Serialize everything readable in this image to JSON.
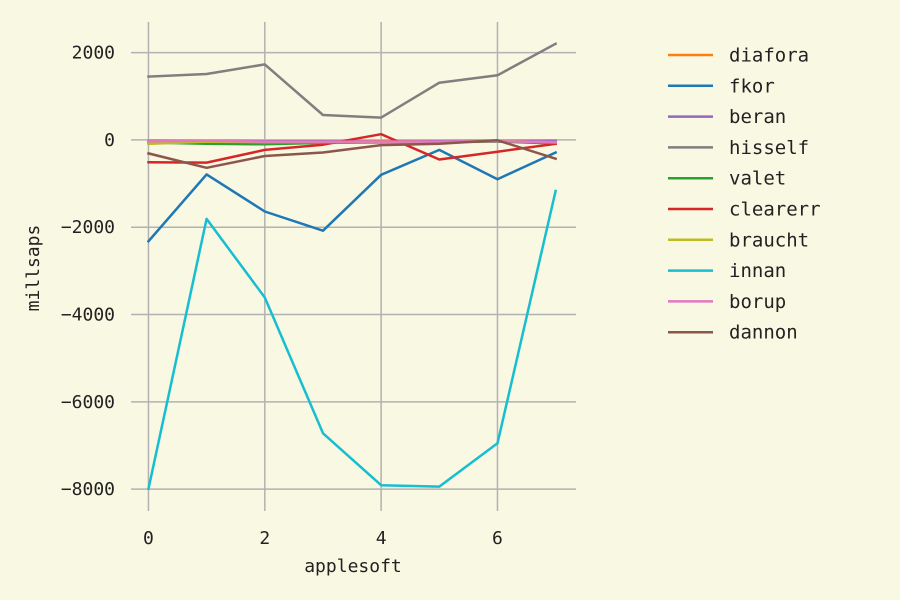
{
  "chart_data": {
    "type": "line",
    "xlabel": "applesoft",
    "ylabel": "millsaps",
    "x": [
      0,
      1,
      2,
      3,
      4,
      5,
      6,
      7
    ],
    "xlim": [
      -0.3,
      7.35
    ],
    "ylim": [
      -8500,
      2700
    ],
    "xticks": [
      0,
      2,
      4,
      6
    ],
    "yticks": [
      2000,
      0,
      -2000,
      -4000,
      -6000,
      -8000
    ],
    "ytick_labels": [
      "2000",
      "0",
      "−2000",
      "−4000",
      "−6000",
      "−8000"
    ],
    "grid": true,
    "legend_position": "right",
    "series": [
      {
        "name": "diafora",
        "color": "#ff7f0e",
        "values": [
          -40,
          -30,
          -35,
          -40,
          -30,
          -30,
          -25,
          -40
        ]
      },
      {
        "name": "fkor",
        "color": "#1f77b4",
        "values": [
          -2320,
          -790,
          -1640,
          -2080,
          -800,
          -230,
          -900,
          -290
        ]
      },
      {
        "name": "beran",
        "color": "#9467bd",
        "values": [
          -20,
          -20,
          -30,
          -30,
          -40,
          -30,
          -25,
          -20
        ]
      },
      {
        "name": "hisself",
        "color": "#7f7f7f",
        "values": [
          1450,
          1510,
          1730,
          570,
          510,
          1310,
          1480,
          2200
        ]
      },
      {
        "name": "valet",
        "color": "#2ca02c",
        "values": [
          -60,
          -90,
          -100,
          -70,
          -60,
          -50,
          -40,
          -80
        ]
      },
      {
        "name": "clearerr",
        "color": "#d62728",
        "values": [
          -510,
          -520,
          -230,
          -110,
          130,
          -450,
          -270,
          -90
        ]
      },
      {
        "name": "braucht",
        "color": "#bcbd22",
        "values": [
          -90,
          -40,
          -50,
          -50,
          -50,
          -50,
          -20,
          -60
        ]
      },
      {
        "name": "innan",
        "color": "#17becf",
        "values": [
          -7990,
          -1810,
          -3610,
          -6720,
          -7910,
          -7940,
          -6950,
          -1170
        ]
      },
      {
        "name": "borup",
        "color": "#e377c2",
        "values": [
          -30,
          -20,
          -40,
          -40,
          -40,
          -40,
          -30,
          -50
        ]
      },
      {
        "name": "dannon",
        "color": "#8c564b",
        "values": [
          -310,
          -640,
          -370,
          -290,
          -120,
          -90,
          -10,
          -430
        ]
      }
    ]
  }
}
